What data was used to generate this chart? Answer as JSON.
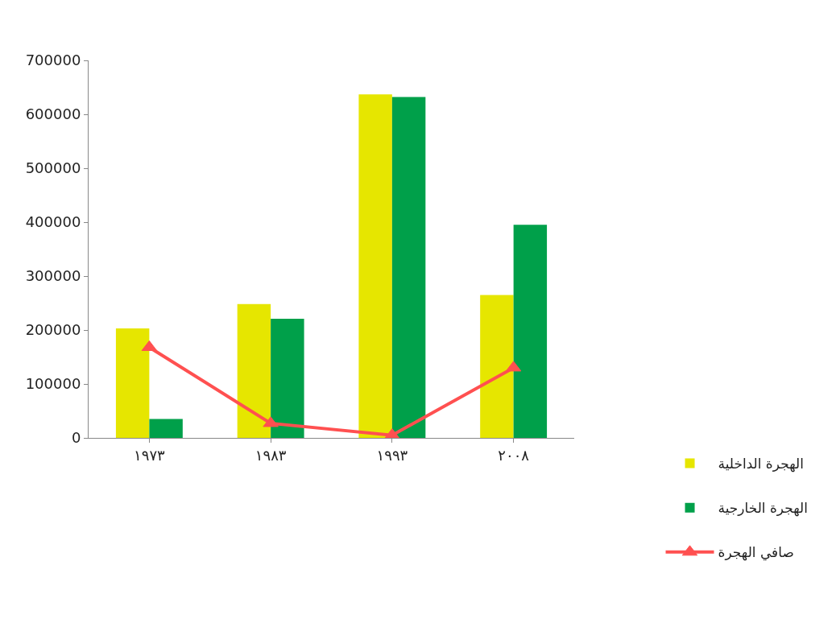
{
  "chart_data": {
    "type": "bar",
    "categories": [
      "١٩٧٣",
      "١٩٨٣",
      "١٩٩٣",
      "٢٠٠٨"
    ],
    "series": [
      {
        "name": "الهجرة الداخلية",
        "color": "#e6e600",
        "values": [
          203000,
          248000,
          637000,
          265000
        ]
      },
      {
        "name": "الهجرة الخارجية",
        "color": "#00a04a",
        "values": [
          35000,
          221000,
          632000,
          395000
        ]
      },
      {
        "name": "صافي الهجرة",
        "type": "line",
        "color": "#ff5050",
        "marker": "triangle",
        "values": [
          168000,
          27000,
          5000,
          130000
        ]
      }
    ],
    "ylim": [
      0,
      700000
    ],
    "yticks": [
      0,
      100000,
      200000,
      300000,
      400000,
      500000,
      600000,
      700000
    ],
    "legend": "right"
  }
}
